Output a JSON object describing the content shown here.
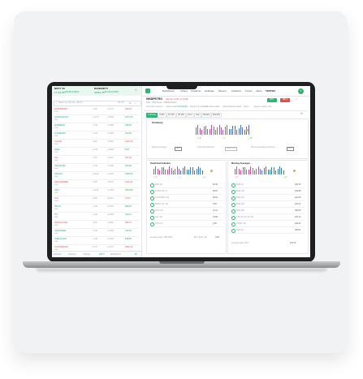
{
  "indices": {
    "nifty": {
      "name": "NIFTY 50",
      "value": "17724.86",
      "change": "+145.55 (0.83%)"
    },
    "banknifty": {
      "name": "BANKNIFTY",
      "value": "39081.25",
      "change": "+312.90 (0.81%)"
    }
  },
  "nav": {
    "items": [
      "Dashboard",
      "Orders",
      "Positions",
      "Holdings",
      "Movers",
      "Analytics",
      "Funds",
      "Alerts",
      "TESTER"
    ],
    "avatar": "T"
  },
  "watchlist": {
    "search_placeholder": "Search eg: Infy bse, nifty fut",
    "count": "48 / 50",
    "rows": [
      {
        "symbol": "HINDPETRO",
        "exchange": "NSE",
        "change": "-0.29",
        "pct": "-0.12%",
        "price": "232.40",
        "up": false
      },
      {
        "symbol": "HINDUNILVR",
        "exchange": "NSE",
        "change": "+12.75",
        "pct": "+0.50%",
        "price": "2571.00",
        "up": true
      },
      {
        "symbol": "HINDZINC",
        "exchange": "NSE",
        "change": "+1.15",
        "pct": "+0.38%",
        "price": "305.90",
        "up": true
      },
      {
        "symbol": "ICICIBANK",
        "exchange": "NSE",
        "change": "+8.30",
        "pct": "+0.92%",
        "price": "912.55",
        "up": true
      },
      {
        "symbol": "ICICIGI",
        "exchange": "NSE",
        "change": "-4.60",
        "pct": "-0.35%",
        "price": "1310.20",
        "up": false
      },
      {
        "symbol": "IDEA",
        "exchange": "NSE",
        "change": "+0.05",
        "pct": "+0.58%",
        "price": "8.65",
        "up": true
      },
      {
        "symbol": "IGL",
        "exchange": "NSE",
        "change": "-2.10",
        "pct": "-0.52%",
        "price": "401.45",
        "up": false
      },
      {
        "symbol": "INDHOTEL",
        "exchange": "NSE",
        "change": "+3.25",
        "pct": "+1.01%",
        "price": "325.80",
        "up": true
      },
      {
        "symbol": "INDIGO",
        "exchange": "NSE",
        "change": "+21.40",
        "pct": "+1.06%",
        "price": "2035.60",
        "up": true
      },
      {
        "symbol": "INDUSINDBK",
        "exchange": "NSE",
        "change": "-6.85",
        "pct": "-0.57%",
        "price": "1192.30",
        "up": false
      },
      {
        "symbol": "INFY",
        "exchange": "NSE",
        "change": "+11.20",
        "pct": "+0.73%",
        "price": "1544.85",
        "up": true
      },
      {
        "symbol": "IOC",
        "exchange": "NSE",
        "change": "-0.35",
        "pct": "-0.46%",
        "price": "75.60",
        "up": false
      },
      {
        "symbol": "IRCTC",
        "exchange": "NSE",
        "change": "+4.05",
        "pct": "+0.60%",
        "price": "680.25",
        "up": true
      },
      {
        "symbol": "ITC",
        "exchange": "NSE",
        "change": "+1.90",
        "pct": "+0.56%",
        "price": "342.10",
        "up": true
      },
      {
        "symbol": "JINDALSTEL",
        "exchange": "NSE",
        "change": "-3.45",
        "pct": "-0.59%",
        "price": "585.75",
        "up": false
      },
      {
        "symbol": "JSWSTEEL",
        "exchange": "NSE",
        "change": "+5.60",
        "pct": "+0.78%",
        "price": "726.40",
        "up": true
      },
      {
        "symbol": "JUBLFOOD",
        "exchange": "NSE",
        "change": "+2.35",
        "pct": "+0.44%",
        "price": "538.90",
        "up": true
      },
      {
        "symbol": "KOTAKBANK",
        "exchange": "NSE",
        "change": "-8.75",
        "pct": "-0.47%",
        "price": "1862.15",
        "up": false
      }
    ],
    "footer_tabs": [
      "Watchlist",
      "Positions",
      "Holdings",
      "NIFTY",
      "BANKNIFTY"
    ]
  },
  "stock": {
    "symbol": "HINDPETRO",
    "meta": "NSE  ·  NSE Equity  ·  INE094A01015",
    "price": "232.40 -0.29 (-0.12%)",
    "buy_label": "BUY",
    "sell_label": "SELL",
    "tabs": [
      "Overview",
      "Futures",
      "Option chain",
      "Technicals",
      "Returns & Volatility",
      "Fundamentals",
      "Shareholding pattern",
      "News",
      "Events",
      "Deals",
      "Info"
    ],
    "timeframes": [
      "1 Minute",
      "5 Min",
      "15 Min",
      "30 Min",
      "Hour",
      "Day",
      "Weekly",
      "Monthly"
    ]
  },
  "summary": {
    "title": "Summary",
    "buy_count": "11",
    "neutral_count": "4",
    "sell_count": "9",
    "labels": [
      "Moving Averages",
      "Technical Indicators",
      "Moving Averages Crossover"
    ],
    "verdicts": [
      "BUY",
      "NEUTRAL",
      "BUY"
    ]
  },
  "technical_indicators": {
    "title": "Technical Indicator",
    "counts": [
      "3",
      "1",
      "4"
    ],
    "rows": [
      {
        "name": "RSI (14)",
        "value": "52.33"
      },
      {
        "name": "STOCH (9, 6)",
        "value": "48.97"
      },
      {
        "name": "STOCHRSI (14)",
        "value": "60.81"
      },
      {
        "name": "MACD (12, 26)",
        "value": "0.54"
      },
      {
        "name": "ADX (14)",
        "value": "21.17"
      },
      {
        "name": "CCI (14)",
        "value": "43.90"
      },
      {
        "name": "ATR (14)",
        "value": "2.93"
      }
    ],
    "footer": "Average Value: NEUTRAL",
    "summary_label": "Bull / Bear (13)",
    "summary_value": "0.29"
  },
  "moving_averages": {
    "title": "Moving Averages",
    "counts": [
      "8",
      "4"
    ],
    "rows": [
      {
        "name": "SMA (5)",
        "value": "232.15"
      },
      {
        "name": "EMA (10)",
        "value": "231.88"
      },
      {
        "name": "SMA (20)",
        "value": "231.40"
      },
      {
        "name": "EMA (20)",
        "value": "231.62"
      },
      {
        "name": "SMA (50)",
        "value": "230.05"
      },
      {
        "name": "Ichimoku (9, 26, 52)",
        "value": "231.10"
      },
      {
        "name": "VWAP (14)",
        "value": "232.03"
      },
      {
        "name": "HMA (9)",
        "value": "232.51"
      }
    ],
    "footer": "Average Value: BUY",
    "footer_value": "231.72"
  },
  "colors": {
    "accent": "#2bb673",
    "up": "#23a86b",
    "down": "#e0504b",
    "neutral": "#9aa0a6"
  }
}
